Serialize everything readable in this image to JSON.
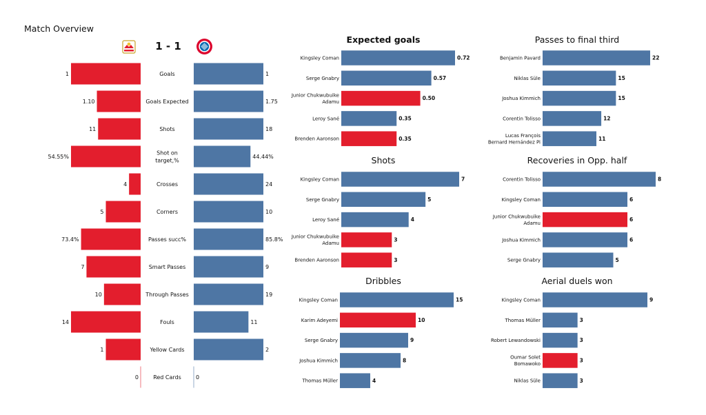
{
  "header": {
    "title": "Match Overview",
    "score": "1 - 1"
  },
  "teams": {
    "home": {
      "color": "#e31e2d",
      "logo_icon": "salzburg-crest-icon"
    },
    "away": {
      "color": "#4e76a4",
      "logo_icon": "bayern-crest-icon"
    }
  },
  "chart_data": [
    {
      "type": "bar",
      "orientation": "diverging-horizontal",
      "title": "",
      "categories": [
        "Goals",
        "Goals Expected",
        "Shots",
        "Shot on\ntarget,%",
        "Crosses",
        "Corners",
        "Passes succ%",
        "Smart Passes",
        "Through Passes",
        "Fouls",
        "Yellow Cards",
        "Red Cards"
      ],
      "series": [
        {
          "values": [
            1,
            1.1,
            11,
            54.55,
            4,
            5,
            73.4,
            7,
            10,
            14,
            1,
            0
          ],
          "value_labels": [
            "1",
            "1.10",
            "11",
            "54.55%",
            "4",
            "5",
            "73.4%",
            "7",
            "10",
            "14",
            "1",
            "0"
          ]
        },
        {
          "values": [
            1,
            1.75,
            18,
            44.44,
            24,
            10,
            85.8,
            9,
            19,
            11,
            2,
            0
          ],
          "value_labels": [
            "1",
            "1.75",
            "18",
            "44.44%",
            "24",
            "10",
            "85.8%",
            "9",
            "19",
            "11",
            "2",
            "0"
          ]
        }
      ],
      "colors": [
        "#e31e2d",
        "#4e76a4"
      ]
    },
    {
      "type": "bar",
      "orientation": "horizontal",
      "title": "Expected goals",
      "categories": [
        "Kingsley Coman",
        "Serge  Gnabry",
        "Junior Chukwubuike\nAdamu",
        "Leroy Sané",
        "Brenden  Aaronson"
      ],
      "values": [
        0.72,
        0.57,
        0.5,
        0.35,
        0.35
      ],
      "value_labels": [
        "0.72",
        "0.57",
        "0.50",
        "0.35",
        "0.35"
      ],
      "bar_team": [
        "away",
        "away",
        "home",
        "away",
        "home"
      ]
    },
    {
      "type": "bar",
      "orientation": "horizontal",
      "title": "Passes to final third",
      "categories": [
        "Benjamin Pavard",
        "Niklas Süle",
        "Joshua Kimmich",
        "Corentin Tolisso",
        "Lucas François\nBernard Hernández Pi"
      ],
      "values": [
        22,
        15,
        15,
        12,
        11
      ],
      "value_labels": [
        "22",
        "15",
        "15",
        "12",
        "11"
      ],
      "bar_team": [
        "away",
        "away",
        "away",
        "away",
        "away"
      ]
    },
    {
      "type": "bar",
      "orientation": "horizontal",
      "title": "Shots",
      "categories": [
        "Kingsley Coman",
        "Serge  Gnabry",
        "Leroy Sané",
        "Junior Chukwubuike\nAdamu",
        "Brenden  Aaronson"
      ],
      "values": [
        7,
        5,
        4,
        3,
        3
      ],
      "value_labels": [
        "7",
        "5",
        "4",
        "3",
        "3"
      ],
      "bar_team": [
        "away",
        "away",
        "away",
        "home",
        "home"
      ]
    },
    {
      "type": "bar",
      "orientation": "horizontal",
      "title": "Recoveries in Opp. half",
      "categories": [
        "Corentin Tolisso",
        "Kingsley Coman",
        "Junior Chukwubuike\nAdamu",
        "Joshua Kimmich",
        "Serge  Gnabry"
      ],
      "values": [
        8,
        6,
        6,
        6,
        5
      ],
      "value_labels": [
        "8",
        "6",
        "6",
        "6",
        "5"
      ],
      "bar_team": [
        "away",
        "away",
        "home",
        "away",
        "away"
      ]
    },
    {
      "type": "bar",
      "orientation": "horizontal",
      "title": "Dribbles",
      "categories": [
        "Kingsley Coman",
        "Karim Adeyemi",
        "Serge  Gnabry",
        "Joshua Kimmich",
        "Thomas Müller"
      ],
      "values": [
        15,
        10,
        9,
        8,
        4
      ],
      "value_labels": [
        "15",
        "10",
        "9",
        "8",
        "4"
      ],
      "bar_team": [
        "away",
        "home",
        "away",
        "away",
        "away"
      ]
    },
    {
      "type": "bar",
      "orientation": "horizontal",
      "title": "Aerial duels won",
      "categories": [
        "Kingsley Coman",
        "Thomas Müller",
        "Robert Lewandowski",
        "Oumar Solet\nBomawoko",
        "Niklas Süle"
      ],
      "values": [
        9,
        3,
        3,
        3,
        3
      ],
      "value_labels": [
        "9",
        "3",
        "3",
        "3",
        "3"
      ],
      "bar_team": [
        "away",
        "away",
        "away",
        "home",
        "away"
      ]
    }
  ]
}
